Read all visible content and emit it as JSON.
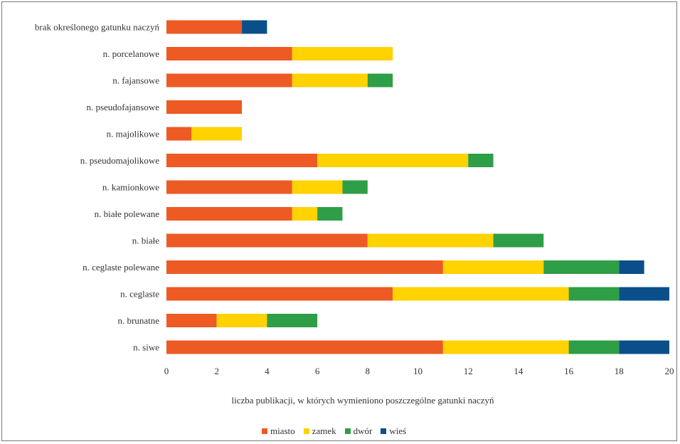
{
  "chart_data": {
    "type": "bar",
    "orientation": "horizontal",
    "stacked": true,
    "categories": [
      "brak określonego gatunku naczyń",
      "n. porcelanowe",
      "n. fajansowe",
      "n. pseudofajansowe",
      "n. majolikowe",
      "n. pseudomajolikowe",
      "n. kamionkowe",
      "n. białe polewane",
      "n. białe",
      "n. ceglaste polewane",
      "n. ceglaste",
      "n. brunatne",
      "n. siwe"
    ],
    "series": [
      {
        "name": "miasto",
        "color": "#ee5a24",
        "values": [
          3,
          5,
          5,
          3,
          1,
          6,
          5,
          5,
          8,
          11,
          9,
          2,
          11
        ]
      },
      {
        "name": "zamek",
        "color": "#ffd200",
        "values": [
          0,
          4,
          3,
          0,
          2,
          6,
          2,
          1,
          5,
          4,
          7,
          2,
          5
        ]
      },
      {
        "name": "dwór",
        "color": "#2e9e47",
        "values": [
          0,
          0,
          1,
          0,
          0,
          1,
          1,
          1,
          2,
          3,
          2,
          2,
          2
        ]
      },
      {
        "name": "wieś",
        "color": "#0b4f8a",
        "values": [
          1,
          0,
          0,
          0,
          0,
          0,
          0,
          0,
          0,
          1,
          2,
          0,
          2
        ]
      }
    ],
    "xlabel": "liczba publikacji, w których wymieniono poszczególne gatunki naczyń",
    "xlim": [
      0,
      20
    ],
    "xticks": [
      "0",
      "2",
      "4",
      "6",
      "8",
      "10",
      "12",
      "14",
      "16",
      "18",
      "20"
    ],
    "grid": false,
    "legend_position": "bottom"
  }
}
